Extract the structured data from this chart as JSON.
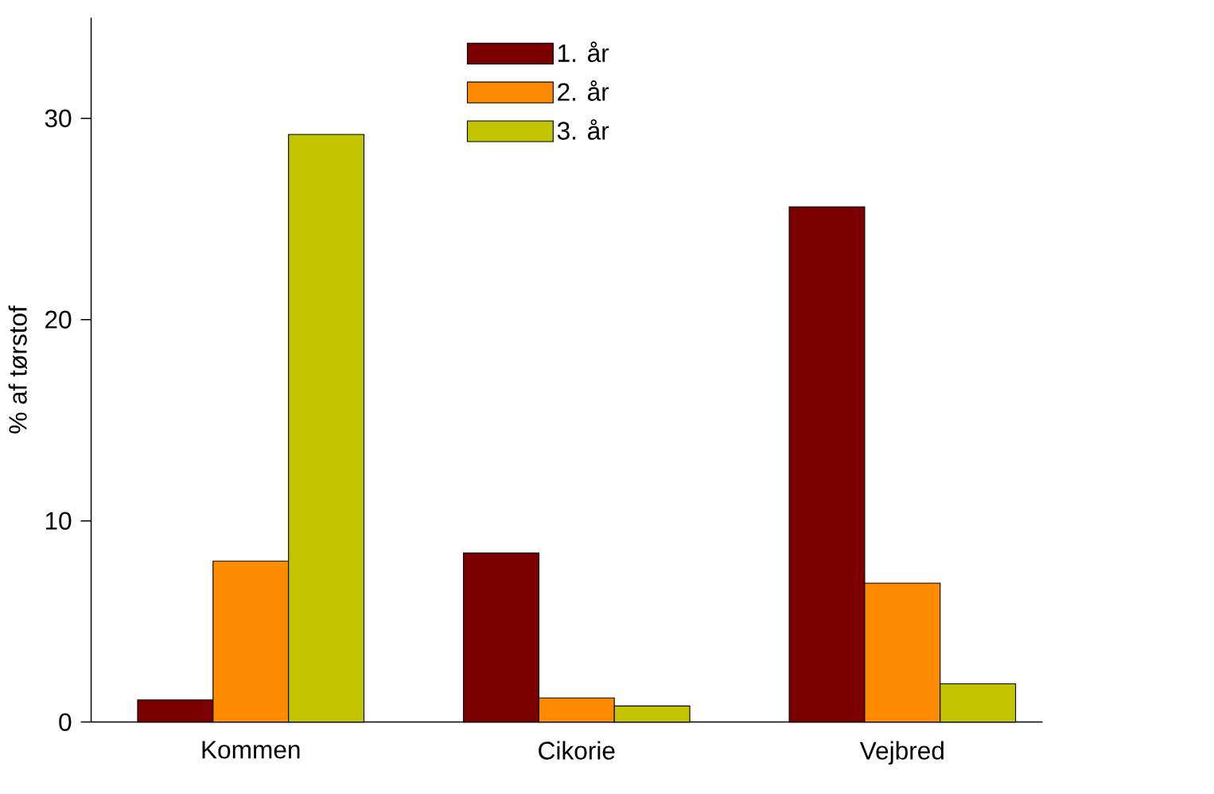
{
  "chart_data": {
    "type": "bar",
    "ylabel": "% af tørstof",
    "categories": [
      "Kommen",
      "Cikorie",
      "Vejbred"
    ],
    "series": [
      {
        "name": "1. år",
        "color": "#7b0000",
        "values": [
          1.1,
          8.4,
          25.6
        ]
      },
      {
        "name": "2. år",
        "color": "#ff8c00",
        "values": [
          8.0,
          1.2,
          6.9
        ]
      },
      {
        "name": "3. år",
        "color": "#c2c400",
        "values": [
          29.2,
          0.8,
          1.9
        ]
      }
    ],
    "ylim": [
      0,
      35
    ],
    "yticks": [
      0,
      10,
      20,
      30
    ],
    "legend": "top",
    "grid": false
  }
}
